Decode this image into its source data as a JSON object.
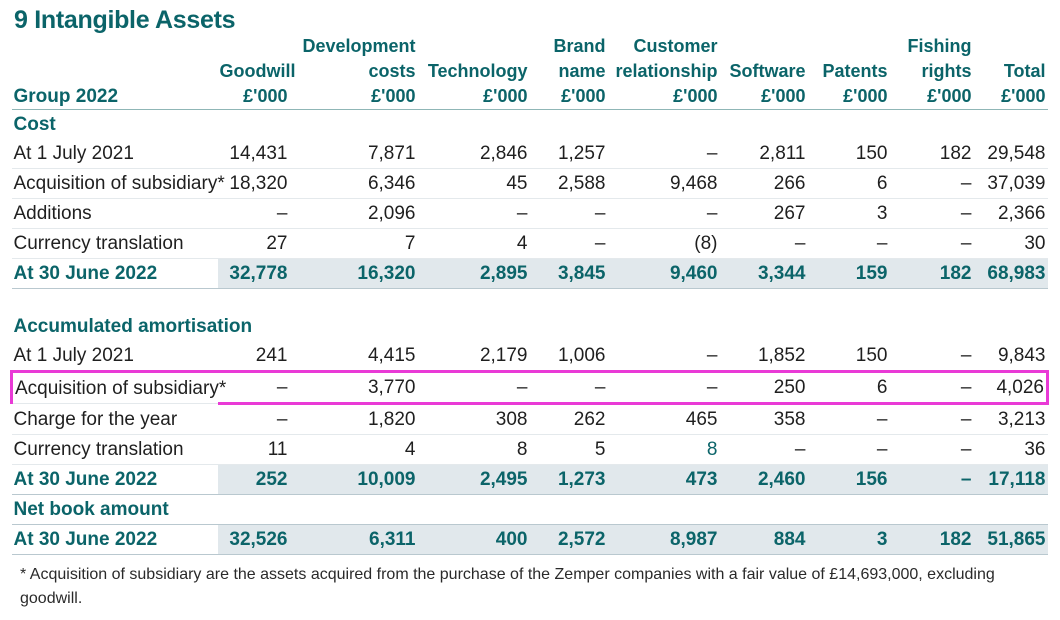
{
  "title": "9 Intangible Assets",
  "header": {
    "group_label": "Group 2022",
    "columns": [
      {
        "lines": [
          "Goodwill",
          "£'000"
        ]
      },
      {
        "lines": [
          "Development",
          "costs",
          "£'000"
        ]
      },
      {
        "lines": [
          "Technology",
          "£'000"
        ]
      },
      {
        "lines": [
          "Brand",
          "name",
          "£'000"
        ]
      },
      {
        "lines": [
          "Customer",
          "relationship",
          "£'000"
        ]
      },
      {
        "lines": [
          "Software",
          "£'000"
        ]
      },
      {
        "lines": [
          "Patents",
          "£'000"
        ]
      },
      {
        "lines": [
          "Fishing",
          "rights",
          "£'000"
        ]
      },
      {
        "lines": [
          "Total",
          "£'000"
        ]
      }
    ]
  },
  "sections": {
    "cost": "Cost",
    "accumulated_amortisation": "Accumulated amortisation",
    "net_book_amount": "Net book amount"
  },
  "rows": {
    "cost_open": {
      "label": "At 1 July 2021",
      "values": [
        "14,431",
        "7,871",
        "2,846",
        "1,257",
        "–",
        "2,811",
        "150",
        "182",
        "29,548"
      ]
    },
    "cost_acq": {
      "label": "Acquisition of subsidiary*",
      "values": [
        "18,320",
        "6,346",
        "45",
        "2,588",
        "9,468",
        "266",
        "6",
        "–",
        "37,039"
      ]
    },
    "cost_add": {
      "label": "Additions",
      "values": [
        "–",
        "2,096",
        "–",
        "–",
        "–",
        "267",
        "3",
        "–",
        "2,366"
      ]
    },
    "cost_fx": {
      "label": "Currency translation",
      "values": [
        "27",
        "7",
        "4",
        "–",
        "(8)",
        "–",
        "–",
        "–",
        "30"
      ]
    },
    "cost_close": {
      "label": "At 30 June 2022",
      "values": [
        "32,778",
        "16,320",
        "2,895",
        "3,845",
        "9,460",
        "3,344",
        "159",
        "182",
        "68,983"
      ]
    },
    "am_open": {
      "label": "At 1 July 2021",
      "values": [
        "241",
        "4,415",
        "2,179",
        "1,006",
        "–",
        "1,852",
        "150",
        "–",
        "9,843"
      ]
    },
    "am_acq": {
      "label": "Acquisition of subsidiary*",
      "values": [
        "–",
        "3,770",
        "–",
        "–",
        "–",
        "250",
        "6",
        "–",
        "4,026"
      ]
    },
    "am_charge": {
      "label": "Charge for the year",
      "values": [
        "–",
        "1,820",
        "308",
        "262",
        "465",
        "358",
        "–",
        "–",
        "3,213"
      ]
    },
    "am_fx": {
      "label": "Currency translation",
      "values": [
        "11",
        "4",
        "8",
        "5",
        "8",
        "–",
        "–",
        "–",
        "36"
      ]
    },
    "am_close": {
      "label": "At 30 June 2022",
      "values": [
        "252",
        "10,009",
        "2,495",
        "1,273",
        "473",
        "2,460",
        "156",
        "–",
        "17,118"
      ]
    },
    "nbv": {
      "label": "At 30 June 2022",
      "values": [
        "32,526",
        "6,311",
        "400",
        "2,572",
        "8,987",
        "884",
        "3",
        "182",
        "51,865"
      ]
    }
  },
  "footnote": "* Acquisition of subsidiary are the assets acquired from the purchase of the Zemper companies with a fair value of £14,693,000, excluding goodwill.",
  "colors": {
    "accent": "#0b6469",
    "total_band": "#e1e8ec",
    "highlight": "#e93ad6"
  }
}
